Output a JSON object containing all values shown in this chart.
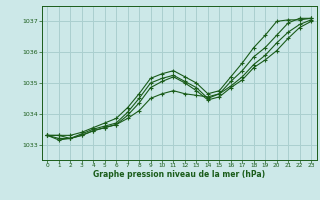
{
  "bg_color": "#cce8e8",
  "grid_color": "#aacfcf",
  "line_color": "#1a5c1a",
  "marker_color": "#1a5c1a",
  "xlabel": "Graphe pression niveau de la mer (hPa)",
  "xlabel_color": "#1a5c1a",
  "tick_color": "#1a5c1a",
  "axis_color": "#1a5c1a",
  "xlim": [
    -0.5,
    23.5
  ],
  "ylim": [
    1032.5,
    1037.5
  ],
  "yticks": [
    1033,
    1034,
    1035,
    1036,
    1037
  ],
  "xticks": [
    0,
    1,
    2,
    3,
    4,
    5,
    6,
    7,
    8,
    9,
    10,
    11,
    12,
    13,
    14,
    15,
    16,
    17,
    18,
    19,
    20,
    21,
    22,
    23
  ],
  "series": [
    [
      1033.3,
      1033.3,
      1033.2,
      1033.3,
      1033.45,
      1033.55,
      1033.65,
      1033.85,
      1034.1,
      1034.5,
      1034.65,
      1034.75,
      1034.65,
      1034.6,
      1034.55,
      1034.65,
      1034.9,
      1035.2,
      1035.6,
      1035.9,
      1036.3,
      1036.65,
      1036.9,
      1037.05
    ],
    [
      1033.3,
      1033.15,
      1033.2,
      1033.3,
      1033.45,
      1033.55,
      1033.65,
      1033.95,
      1034.35,
      1034.85,
      1035.05,
      1035.2,
      1035.0,
      1034.75,
      1034.45,
      1034.55,
      1034.85,
      1035.1,
      1035.5,
      1035.75,
      1036.05,
      1036.45,
      1036.8,
      1037.0
    ],
    [
      1033.3,
      1033.2,
      1033.2,
      1033.35,
      1033.5,
      1033.6,
      1033.7,
      1034.05,
      1034.5,
      1035.0,
      1035.15,
      1035.25,
      1035.05,
      1034.85,
      1034.5,
      1034.65,
      1035.05,
      1035.4,
      1035.85,
      1036.15,
      1036.55,
      1036.95,
      1037.1,
      1037.1
    ],
    [
      1033.3,
      1033.3,
      1033.3,
      1033.4,
      1033.55,
      1033.7,
      1033.85,
      1034.2,
      1034.65,
      1035.15,
      1035.3,
      1035.4,
      1035.2,
      1035.0,
      1034.65,
      1034.75,
      1035.2,
      1035.65,
      1036.15,
      1036.55,
      1037.0,
      1037.05,
      1037.05,
      1037.1
    ]
  ]
}
